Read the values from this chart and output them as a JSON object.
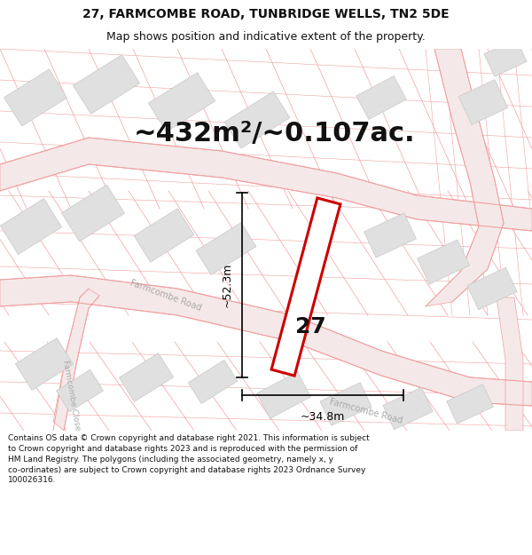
{
  "title_line1": "27, FARMCOMBE ROAD, TUNBRIDGE WELLS, TN2 5DE",
  "title_line2": "Map shows position and indicative extent of the property.",
  "area_text": "~432m²/~0.107ac.",
  "label_width": "~34.8m",
  "label_height": "~52.3m",
  "property_number": "27",
  "footer_text": "Contains OS data © Crown copyright and database right 2021. This information is subject to Crown copyright and database rights 2023 and is reproduced with the permission of HM Land Registry. The polygons (including the associated geometry, namely x, y co-ordinates) are subject to Crown copyright and database rights 2023 Ordnance Survey 100026316.",
  "bg_color": "#ffffff",
  "map_bg_color": "#ffffff",
  "road_line_color": "#f0a0a0",
  "road_fill_color": "#f5e8e8",
  "building_fill": "#e0e0e0",
  "building_edge": "#c8c8c8",
  "property_color": "#cc0000",
  "dim_color": "#000000",
  "text_color": "#111111",
  "road_label_color": "#aaaaaa",
  "title_fontsize": 10,
  "subtitle_fontsize": 9,
  "area_fontsize": 22,
  "footer_fontsize": 6.5
}
